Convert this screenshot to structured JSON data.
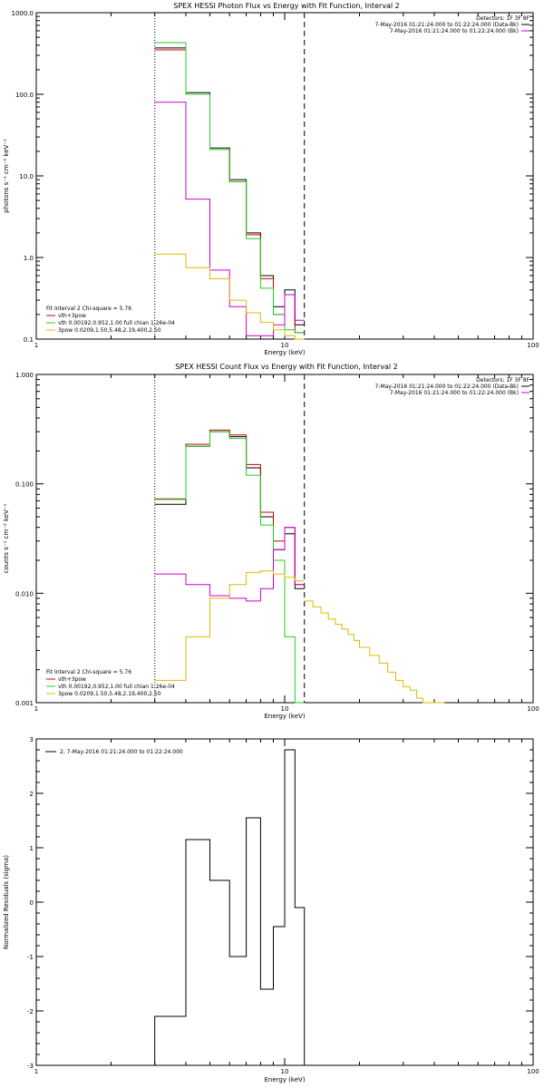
{
  "colors": {
    "axis": "#000000",
    "black": "#000000",
    "red": "#cc0000",
    "green": "#22cc22",
    "magenta": "#cc00cc",
    "gold": "#ddbb00"
  },
  "chart_data": [
    {
      "id": "photon",
      "type": "line",
      "title": "SPEX HESSI Photon Flux vs Energy with Fit Function, Interval 2",
      "xlabel": "Energy (keV)",
      "ylabel": "photons s⁻¹ cm⁻² keV⁻¹",
      "x_scale": "log",
      "y_scale": "log",
      "xlim": [
        1,
        100
      ],
      "ylim": [
        0.1,
        1000
      ],
      "x_ticks": [
        {
          "v": 1,
          "label": "1"
        },
        {
          "v": 10,
          "label": "10"
        },
        {
          "v": 100,
          "label": "100"
        }
      ],
      "y_ticks": [
        {
          "v": 0.1,
          "label": "0.1"
        },
        {
          "v": 1,
          "label": "1.0"
        },
        {
          "v": 10,
          "label": "10.0"
        },
        {
          "v": 100,
          "label": "100.0"
        },
        {
          "v": 1000,
          "label": "1000.0"
        }
      ],
      "vlines": [
        {
          "x": 3.0,
          "style": "dotted"
        },
        {
          "x": 12.0,
          "style": "dashed"
        }
      ],
      "legend_top": [
        "Detectors: 1F 3F 8F",
        "7-May-2016 01:21:24.000 to 01:22:24.000 (Data-Bk)",
        "7-May-2016 01:21:24.000 to 01:22:24.000 (Bk)"
      ],
      "legend_top_colors": [
        "",
        "black",
        "magenta"
      ],
      "legend_bottom": [
        "Fit Interval 2   Chi-square = 5.76",
        "vth+3pow",
        "vth 0.00192,0.952,1.00  full chian 1.26e-04",
        "3pow 0.0209,1.50,5.48,2.19,400,2.50"
      ],
      "legend_bottom_colors": [
        "",
        "red",
        "green",
        "gold"
      ],
      "edges": [
        3.0,
        4.0,
        5.0,
        6.0,
        7.0,
        8.0,
        9.0,
        10.0,
        11.0,
        12.0
      ],
      "series": [
        {
          "color": "black",
          "values": [
            370,
            105,
            22,
            9,
            2.0,
            0.6,
            0.25,
            0.4,
            0.15
          ]
        },
        {
          "color": "red",
          "values": [
            350,
            100,
            21,
            8.5,
            1.9,
            0.55,
            0.2,
            0.35,
            0.12
          ]
        },
        {
          "color": "green",
          "values": [
            430,
            100,
            21,
            8.5,
            1.7,
            0.42,
            0.2,
            0.13,
            0.12
          ]
        },
        {
          "color": "magenta",
          "values": [
            80,
            5.2,
            0.7,
            0.25,
            0.11,
            0.11,
            0.15,
            0.35,
            0.17
          ]
        },
        {
          "color": "gold",
          "values": [
            1.1,
            0.75,
            0.55,
            0.3,
            0.21,
            0.16,
            0.13,
            0.11,
            0.1
          ]
        }
      ]
    },
    {
      "id": "count",
      "type": "line",
      "title": "SPEX HESSI Count Flux vs Energy with Fit Function, Interval 2",
      "xlabel": "Energy (keV)",
      "ylabel": "counts s⁻¹ cm⁻² keV⁻¹",
      "x_scale": "log",
      "y_scale": "log",
      "xlim": [
        1,
        100
      ],
      "ylim": [
        0.001,
        1
      ],
      "x_ticks": [
        {
          "v": 1,
          "label": "1"
        },
        {
          "v": 10,
          "label": "10"
        },
        {
          "v": 100,
          "label": "100"
        }
      ],
      "y_ticks": [
        {
          "v": 0.001,
          "label": "0.001"
        },
        {
          "v": 0.01,
          "label": "0.010"
        },
        {
          "v": 0.1,
          "label": "0.100"
        },
        {
          "v": 1,
          "label": "1.000"
        }
      ],
      "vlines": [
        {
          "x": 3.0,
          "style": "dotted"
        },
        {
          "x": 12.0,
          "style": "dashed"
        }
      ],
      "legend_top": [
        "Detectors: 1F 3F 8F",
        "7-May-2016 01:21:24.000 to 01:22:24.000 (Data-Bk)",
        "7-May-2016 01:21:24.000 to 01:22:24.000 (Bk)"
      ],
      "legend_top_colors": [
        "",
        "black",
        "magenta"
      ],
      "legend_bottom": [
        "Fit Interval 2   Chi-square = 5.76",
        "vth+3pow",
        "vth 0.00192,0.952,1.00  full chian 1.26e-04",
        "3pow 0.0209,1.50,5.48,2.19,400,2.50"
      ],
      "legend_bottom_colors": [
        "",
        "red",
        "green",
        "gold"
      ],
      "edges": [
        3.0,
        4.0,
        5.0,
        6.0,
        7.0,
        8.0,
        9.0,
        10.0,
        11.0,
        12.0
      ],
      "series": [
        {
          "color": "black",
          "values": [
            0.065,
            0.22,
            0.3,
            0.27,
            0.14,
            0.05,
            0.025,
            0.035,
            0.011
          ]
        },
        {
          "color": "red",
          "values": [
            0.073,
            0.23,
            0.31,
            0.28,
            0.15,
            0.055,
            0.03,
            0.04,
            0.012
          ]
        },
        {
          "color": "green",
          "values": [
            0.072,
            0.22,
            0.3,
            0.26,
            0.12,
            0.042,
            0.02,
            0.004,
            0.0008
          ]
        },
        {
          "color": "magenta",
          "values": [
            0.015,
            0.012,
            0.0095,
            0.009,
            0.0085,
            0.011,
            0.025,
            0.04,
            0.012
          ]
        },
        {
          "color": "gold",
          "values": [
            0.0016,
            0.004,
            0.009,
            0.012,
            0.0155,
            0.016,
            0.015,
            0.014,
            0.013
          ]
        }
      ],
      "tail": {
        "color": "gold",
        "edges": [
          12,
          13,
          14,
          15,
          16,
          17,
          18,
          19,
          20,
          22,
          24,
          26,
          28,
          30,
          32,
          34,
          36,
          38,
          40,
          44
        ],
        "values": [
          0.0085,
          0.0075,
          0.0066,
          0.0058,
          0.0052,
          0.0047,
          0.0042,
          0.0037,
          0.0032,
          0.0027,
          0.0023,
          0.0019,
          0.0016,
          0.0014,
          0.0013,
          0.0011,
          0.001,
          0.001,
          0.001
        ]
      }
    },
    {
      "id": "resid",
      "type": "line",
      "title": "",
      "xlabel": "Energy (keV)",
      "ylabel": "Normalized Residuals (sigma)",
      "x_scale": "log",
      "y_scale": "linear",
      "xlim": [
        1,
        100
      ],
      "ylim": [
        -3,
        3
      ],
      "x_ticks": [
        {
          "v": 1,
          "label": "1"
        },
        {
          "v": 10,
          "label": "10"
        },
        {
          "v": 100,
          "label": "100"
        }
      ],
      "y_ticks": [
        {
          "v": -3,
          "label": "-3"
        },
        {
          "v": -2,
          "label": "-2"
        },
        {
          "v": -1,
          "label": "-1"
        },
        {
          "v": 0,
          "label": "0"
        },
        {
          "v": 1,
          "label": "1"
        },
        {
          "v": 2,
          "label": "2"
        },
        {
          "v": 3,
          "label": "3"
        }
      ],
      "vlines": [],
      "legend_top": [
        "2, 7-May-2016 01:21:24.000 to 01:22:24.000"
      ],
      "legend_top_colors": [
        "black"
      ],
      "legend_bottom": [],
      "legend_bottom_colors": [],
      "edges": [
        3.0,
        4.0,
        5.0,
        6.0,
        7.0,
        8.0,
        9.0,
        10.0,
        11.0,
        12.0
      ],
      "series": [
        {
          "color": "black",
          "values": [
            -2.1,
            1.15,
            0.4,
            -1.0,
            1.55,
            -1.6,
            -0.45,
            2.8,
            -0.1
          ],
          "drop_to": -3
        }
      ]
    }
  ]
}
